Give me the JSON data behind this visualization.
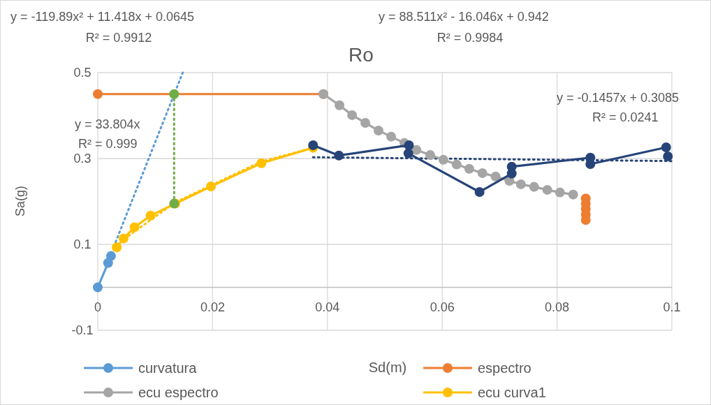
{
  "chart_data": {
    "type": "line",
    "title": "Ro",
    "xlabel": "Sd(m)",
    "ylabel": "Sa(g)",
    "xlim": [
      0,
      0.1
    ],
    "xticks": [
      0,
      0.02,
      0.04,
      0.06,
      0.08,
      0.1
    ],
    "ylim": [
      -0.1,
      0.5
    ],
    "yticks": [
      -0.1,
      0.1,
      0.3,
      0.5
    ],
    "grid": true,
    "legend": "bottom",
    "marker": "circle",
    "line_style": "solid",
    "annotations": [
      "y = -119.89x² + 11.418x + 0.0645",
      "R² = 0.9912",
      "y = 88.511x² - 16.046x + 0.942",
      "R² = 0.9984",
      "y = -0.1457x + 0.3085",
      "R² = 0.0241",
      "y = 33.804x",
      "R² = 0.999"
    ],
    "series": [
      {
        "color": "#5b9bd5",
        "line_style": "dotted",
        "marker": "none",
        "x": [
          0.0028,
          0.0148
        ],
        "values": [
          0.095,
          0.5
        ]
      },
      {
        "color": "#ffc000",
        "line_style": "dotted",
        "marker": "none",
        "x": [
          0.0033,
          0.0135,
          0.0285,
          0.0375
        ],
        "values": [
          0.1,
          0.198,
          0.293,
          0.325
        ]
      },
      {
        "color": "#264478",
        "line_style": "dotted",
        "marker": "none",
        "x": [
          0.0375,
          0.1
        ],
        "values": [
          0.303,
          0.294
        ]
      },
      {
        "name": "curvatura",
        "color": "#5b9bd5",
        "x": [
          0,
          0.0018,
          0.0023
        ],
        "values": [
          0,
          0.057,
          0.073
        ]
      },
      {
        "name": "espectro",
        "color": "#ed7d31",
        "x": [
          0,
          0.0393,
          0.06,
          0.085,
          0.085,
          0.085,
          0.085,
          0.085
        ],
        "values": [
          0.45,
          0.45,
          null,
          0.207,
          0.195,
          0.183,
          0.17,
          0.157
        ]
      },
      {
        "name": "ecu espectro",
        "color": "#a5a5a5",
        "x": [
          0.0393,
          0.0421,
          0.0443,
          0.0466,
          0.0489,
          0.0511,
          0.0534,
          0.0555,
          0.0579,
          0.0602,
          0.0625,
          0.0647,
          0.067,
          0.0693,
          0.0717,
          0.0737,
          0.076,
          0.0783,
          0.0805,
          0.0828
        ],
        "values": [
          0.45,
          0.424,
          0.401,
          0.383,
          0.365,
          0.351,
          0.336,
          0.32,
          0.308,
          0.297,
          0.286,
          0.276,
          0.266,
          0.258,
          0.248,
          0.24,
          0.234,
          0.227,
          0.221,
          0.216
        ]
      },
      {
        "name": "ecu curva1",
        "color": "#ffc000",
        "x": [
          0.0033,
          0.0045,
          0.0064,
          0.0092,
          0.0135,
          0.0197,
          0.0285,
          0.0375
        ],
        "values": [
          0.093,
          0.114,
          0.14,
          0.167,
          0.195,
          0.235,
          0.289,
          0.325
        ]
      },
      {
        "color": "#264478",
        "x": [
          0.0375,
          0.042,
          0.0542,
          0.0541,
          0.0665,
          0.0721,
          0.0721,
          0.0858,
          0.0858,
          0.099,
          0.0993
        ],
        "values": [
          0.331,
          0.307,
          0.331,
          0.312,
          0.222,
          0.265,
          0.281,
          0.302,
          0.287,
          0.326,
          0.305
        ]
      },
      {
        "color": "#70ad47",
        "line_style": "dotted",
        "x": [
          0.0133,
          0.0133
        ],
        "values": [
          0.45,
          0.195
        ]
      }
    ]
  }
}
